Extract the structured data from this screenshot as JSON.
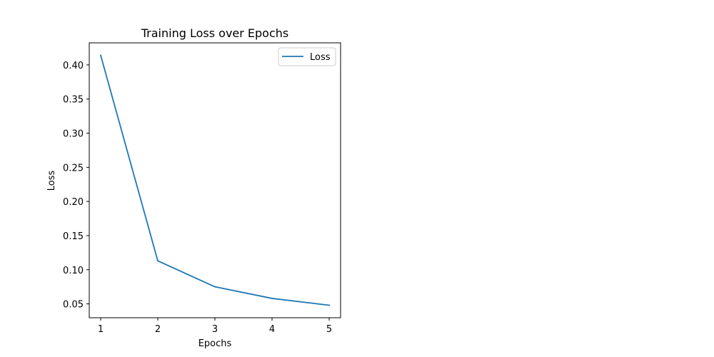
{
  "chart_data": {
    "type": "line",
    "title": "Training Loss over Epochs",
    "xlabel": "Epochs",
    "ylabel": "Loss",
    "x": [
      1,
      2,
      3,
      4,
      5
    ],
    "series": [
      {
        "name": "Loss",
        "color": "#1f77b4",
        "values": [
          0.414,
          0.113,
          0.075,
          0.058,
          0.048
        ]
      }
    ],
    "xlim": [
      0.8,
      5.2
    ],
    "ylim": [
      0.0297,
      0.4323
    ],
    "xticks": [
      1,
      2,
      3,
      4,
      5
    ],
    "xtick_labels": [
      "1",
      "2",
      "3",
      "4",
      "5"
    ],
    "yticks": [
      0.05,
      0.1,
      0.15,
      0.2,
      0.25,
      0.3,
      0.35,
      0.4
    ],
    "ytick_labels": [
      "0.05",
      "0.10",
      "0.15",
      "0.20",
      "0.25",
      "0.30",
      "0.35",
      "0.40"
    ],
    "grid": false,
    "legend": {
      "position": "upper right",
      "entries": [
        "Loss"
      ]
    }
  }
}
